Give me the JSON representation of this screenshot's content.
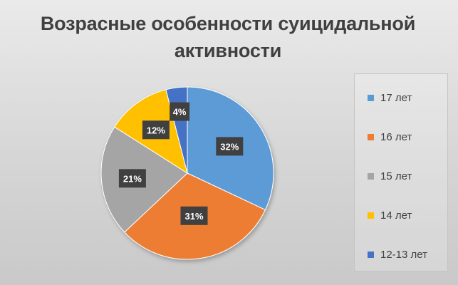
{
  "chart_data": {
    "type": "pie",
    "title": "Возрасные особенности суицидальной активности",
    "title_lines": [
      "Возрасные особенности суицидальной",
      "активности"
    ],
    "categories": [
      "17 лет",
      "16 лет",
      "15 лет",
      "14 лет",
      "12-13 лет"
    ],
    "values": [
      32,
      31,
      21,
      12,
      4
    ],
    "data_labels": [
      "32%",
      "31%",
      "21%",
      "12%",
      "4%"
    ],
    "colors": [
      "#5b9bd5",
      "#ed7d31",
      "#a5a5a5",
      "#ffc000",
      "#4472c4"
    ],
    "legend_position": "right",
    "start_angle_deg": 0,
    "direction": "clockwise"
  }
}
